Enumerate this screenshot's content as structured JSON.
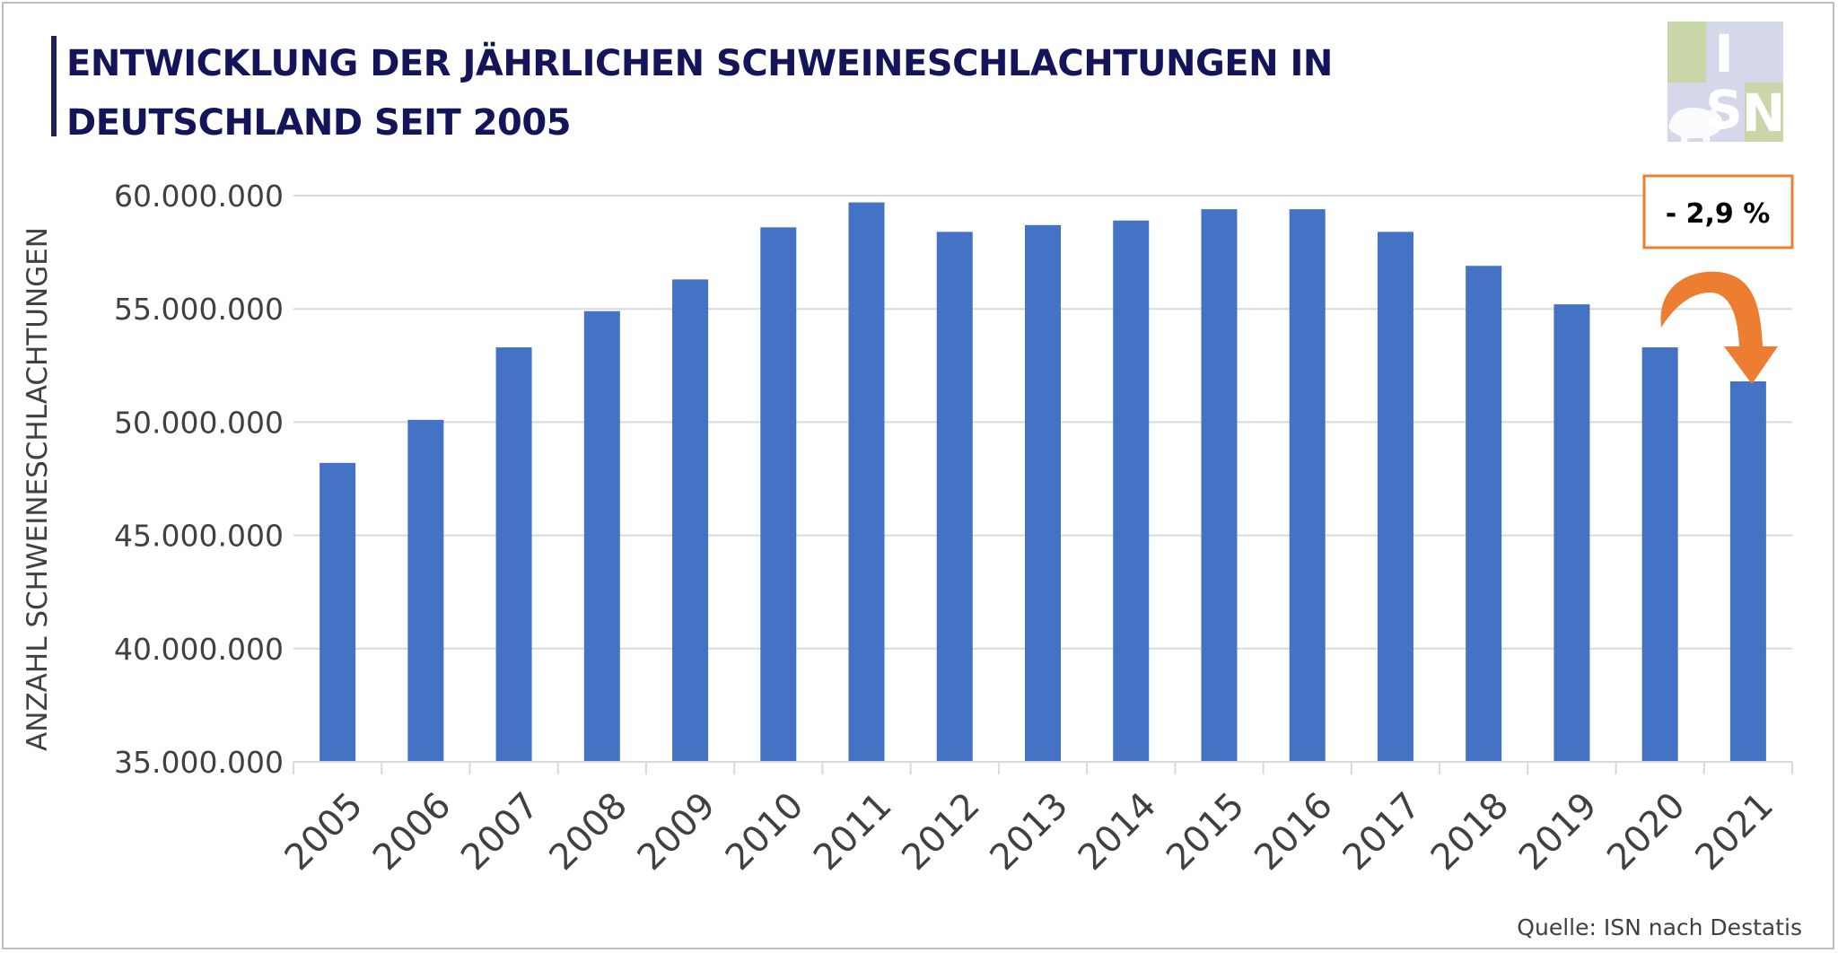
{
  "title": {
    "line1": "ENTWICKLUNG DER JÄHRLICHEN SCHWEINESCHLACHTUNGEN IN",
    "line2": "DEUTSCHLAND  SEIT 2005"
  },
  "source": "Quelle: ISN nach Destatis",
  "logo": {
    "text": "ISN",
    "letters": [
      "I",
      "S",
      "N"
    ],
    "icon": "pig-icon"
  },
  "annotation": {
    "label": "- 2,9 %",
    "color": "#ed7d31",
    "icon": "curved-arrow-down-icon"
  },
  "colors": {
    "bar": "#4472c4",
    "grid": "#d9d9d9",
    "axis_text": "#404040",
    "accent": "#ed7d31"
  },
  "chart_data": {
    "type": "bar",
    "categories": [
      "2005",
      "2006",
      "2007",
      "2008",
      "2009",
      "2010",
      "2011",
      "2012",
      "2013",
      "2014",
      "2015",
      "2016",
      "2017",
      "2018",
      "2019",
      "2020",
      "2021"
    ],
    "values": [
      48200000,
      50100000,
      53300000,
      54900000,
      56300000,
      58600000,
      59700000,
      58400000,
      58700000,
      58900000,
      59400000,
      59400000,
      58400000,
      56900000,
      55200000,
      53300000,
      51800000
    ],
    "ylabel": "ANZAHL SCHWEINESCHLACHTUNGEN",
    "xlabel": "",
    "ylim": [
      35000000,
      60000000
    ],
    "yticks": [
      35000000,
      40000000,
      45000000,
      50000000,
      55000000,
      60000000
    ],
    "ytick_labels": [
      "35.000.000",
      "40.000.000",
      "45.000.000",
      "50.000.000",
      "55.000.000",
      "60.000.000"
    ],
    "grid": true,
    "legend": "none"
  }
}
